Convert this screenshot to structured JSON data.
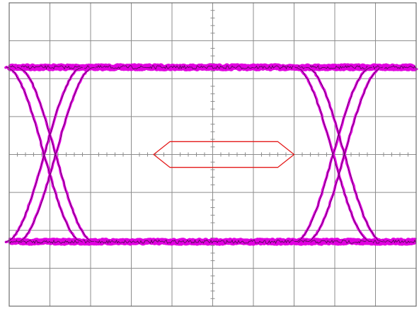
{
  "chart_data": {
    "type": "eye-diagram",
    "title": "",
    "xlabel": "",
    "ylabel": "",
    "grid": true,
    "divisions": {
      "x": 10,
      "y": 8
    },
    "minor_ticks_per_division": 5,
    "xlim": [
      0,
      10
    ],
    "ylim": [
      -4,
      4
    ],
    "levels": {
      "high": 2.3,
      "low": -2.3
    },
    "crossings": [
      1.0,
      8.1
    ],
    "rise_fall_spread": 0.28,
    "mask": {
      "points": [
        [
          3.55,
          0
        ],
        [
          3.95,
          0.34
        ],
        [
          6.6,
          0.34
        ],
        [
          7.0,
          0
        ],
        [
          6.6,
          -0.34
        ],
        [
          3.95,
          -0.34
        ]
      ]
    },
    "colors": {
      "trace": "#e000e0",
      "trace_core": "#3a0a3a",
      "mask": "#e41a1a",
      "grid": "#8c8c8c",
      "frame": "#6e6e6e",
      "background": "#ffffff"
    }
  }
}
